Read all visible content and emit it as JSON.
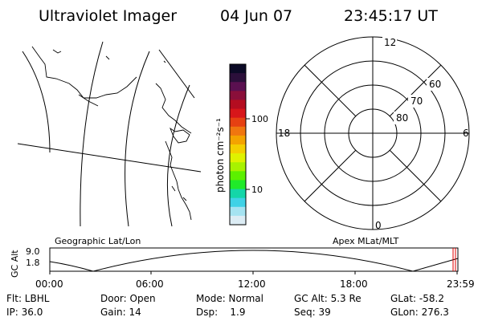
{
  "header": {
    "instrument": "Ultraviolet Imager",
    "date": "04 Jun 07",
    "time": "23:45:17 UT"
  },
  "colorbar": {
    "unit_label": "photon cm⁻²s⁻¹",
    "tick_labels": [
      "100",
      "10"
    ],
    "colors": [
      "#0b0a26",
      "#2b0f3a",
      "#5a1050",
      "#8a0f3a",
      "#b40d20",
      "#d7161a",
      "#e64112",
      "#f0760f",
      "#f4a300",
      "#f4cf00",
      "#dff200",
      "#a8f200",
      "#5cf000",
      "#20ea2a",
      "#14d6a8",
      "#3fd2e6",
      "#a5e3f1",
      "#dcecf4"
    ]
  },
  "polar": {
    "mlt_labels": [
      "12",
      "18",
      "6",
      "0"
    ],
    "lat_labels": [
      "60",
      "70",
      "80"
    ]
  },
  "map": {
    "label": "Geographic Lat/Lon"
  },
  "altitude_plot": {
    "left_label": "Geographic Lat/Lon",
    "right_label": "Apex MLat/MLT",
    "axis_label": "GC Alt",
    "y_ticks": [
      "9.0",
      "1.8"
    ],
    "x_ticks": [
      "00:00",
      "06:00",
      "12:00",
      "18:00",
      "23:59"
    ]
  },
  "status": [
    [
      "Flt: LBHL",
      "Door: Open",
      "Mode: Normal",
      "GC Alt: 5.3 Re",
      "GLat: -58.2"
    ],
    [
      "IP: 36.0",
      "Gain: 14",
      "Dsp:    1.9",
      "Seq: 39",
      "GLon: 276.3"
    ]
  ]
}
